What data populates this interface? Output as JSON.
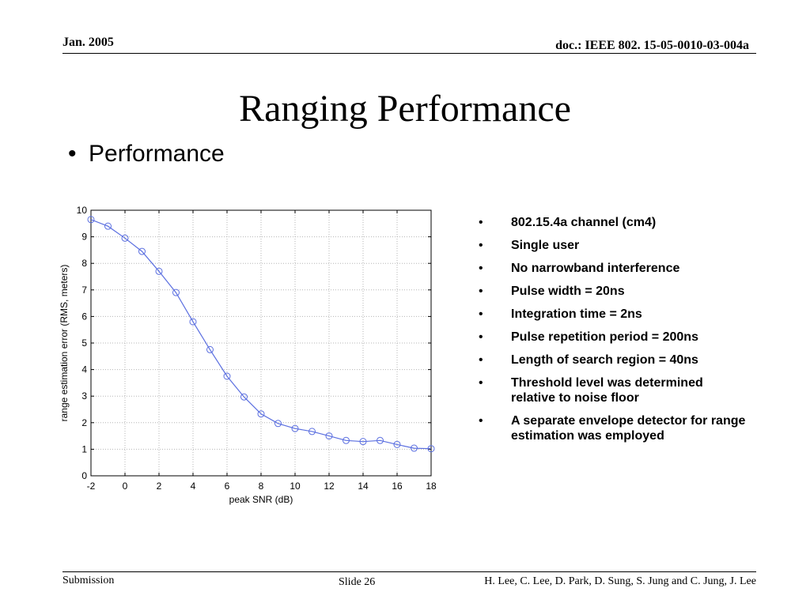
{
  "header": {
    "date": "Jan. 2005",
    "doc_id": "doc.: IEEE 802. 15-05-0010-03-004a"
  },
  "title": "Ranging Performance",
  "section_bullet": "Performance",
  "bullets": [
    "802.15.4a channel (cm4)",
    "Single user",
    "No narrowband interference",
    "Pulse width = 20ns",
    "Integration time = 2ns",
    "Pulse repetition period   = 200ns",
    "Length of search region = 40ns",
    "Threshold level was determined relative to noise floor",
    "A separate envelope detector for range estimation was employed"
  ],
  "footer": {
    "left": "Submission",
    "slide": "Slide 26",
    "authors": "H. Lee, C. Lee, D. Park, D. Sung, S. Jung and C. Jung, J. Lee"
  },
  "chart_data": {
    "type": "line",
    "title": "",
    "xlabel": "peak SNR (dB)",
    "ylabel": "range estimation error (RMS, meters)",
    "xlim": [
      -2,
      18
    ],
    "ylim": [
      0,
      10
    ],
    "xticks": [
      -2,
      0,
      2,
      4,
      6,
      8,
      10,
      12,
      14,
      16,
      18
    ],
    "yticks": [
      0,
      1,
      2,
      3,
      4,
      5,
      6,
      7,
      8,
      9,
      10
    ],
    "grid": true,
    "marker": "circle",
    "line_color": "#5b6fe0",
    "x": [
      -2,
      -1,
      0,
      1,
      2,
      3,
      4,
      5,
      6,
      7,
      8,
      9,
      10,
      11,
      12,
      13,
      14,
      15,
      16,
      17,
      18
    ],
    "y": [
      9.65,
      9.4,
      8.95,
      8.45,
      7.7,
      6.9,
      5.8,
      4.75,
      3.75,
      2.97,
      2.33,
      1.97,
      1.78,
      1.67,
      1.5,
      1.33,
      1.29,
      1.33,
      1.18,
      1.04,
      1.02
    ]
  }
}
